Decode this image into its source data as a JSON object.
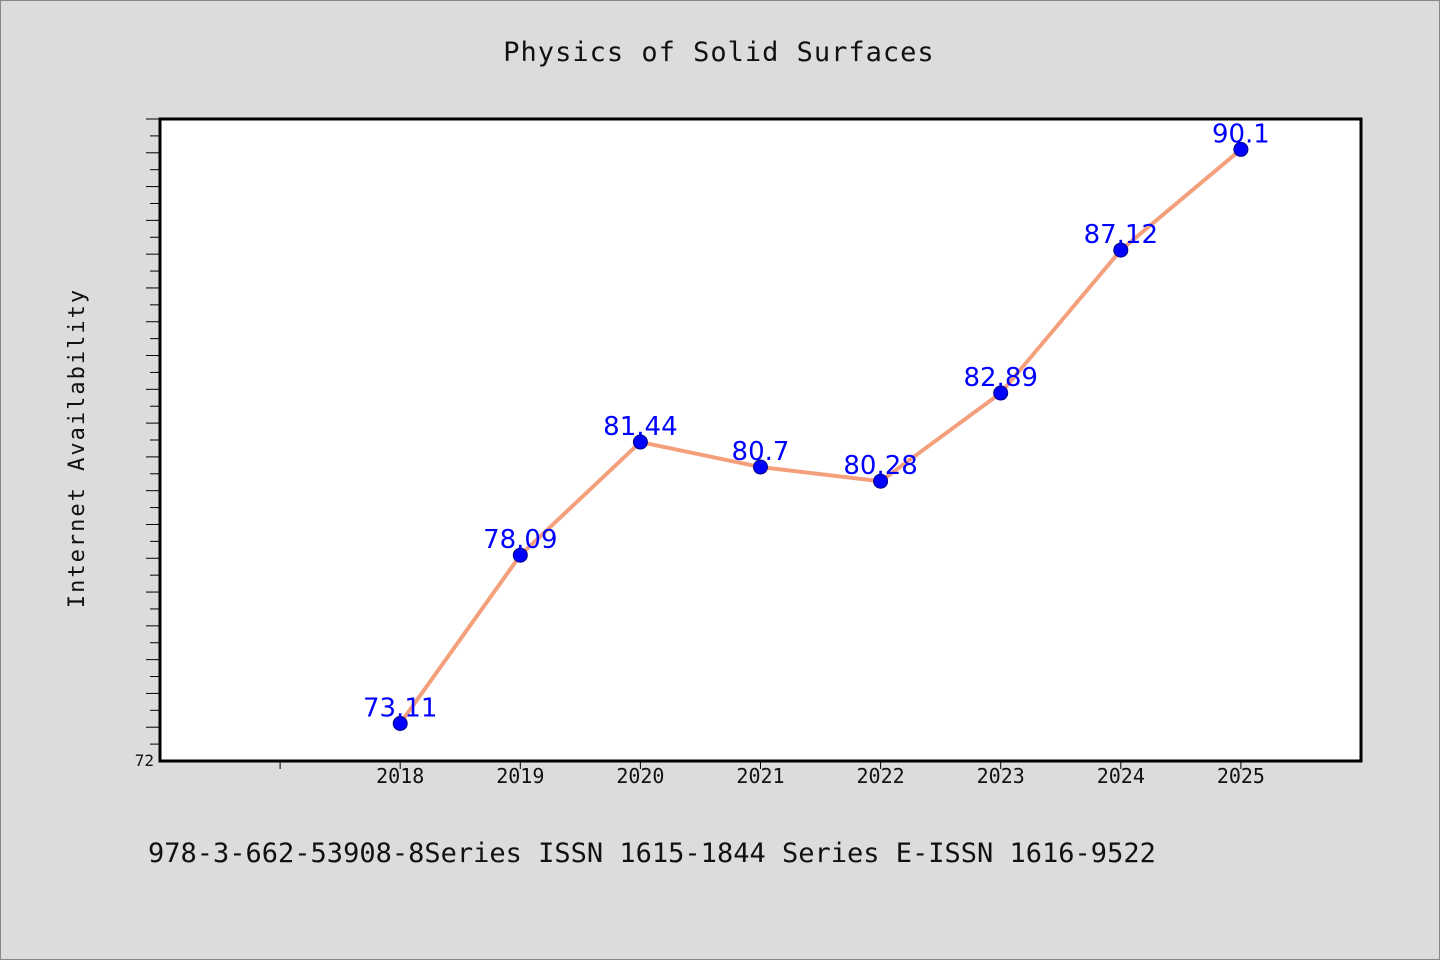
{
  "colors": {
    "background": "#dcdcdc",
    "plot_background": "#ffffff",
    "line": "#f4a07c",
    "marker": "#0000ff",
    "label": "#0000ff"
  },
  "caption": "978-3-662-53908-8Series ISSN 1615-1844 Series E-ISSN 1616-9522",
  "chart_data": {
    "type": "line",
    "title": "Physics of Solid Surfaces",
    "xlabel": "",
    "ylabel": "Internet Availability",
    "categories": [
      "2018",
      "2019",
      "2020",
      "2021",
      "2022",
      "2023",
      "2024",
      "2025"
    ],
    "series": [
      {
        "values": [
          73.11,
          78.09,
          81.44,
          80.7,
          80.28,
          82.89,
          87.12,
          90.1
        ],
        "labels": [
          "73.11",
          "78.09",
          "81.44",
          "80.7",
          "80.28",
          "82.89",
          "87.12",
          "90.1"
        ]
      }
    ],
    "y_tick_labels": [
      "72"
    ],
    "ylim": [
      72,
      91
    ],
    "xlim": [
      -2,
      8
    ],
    "grid": false,
    "legend": "none"
  }
}
